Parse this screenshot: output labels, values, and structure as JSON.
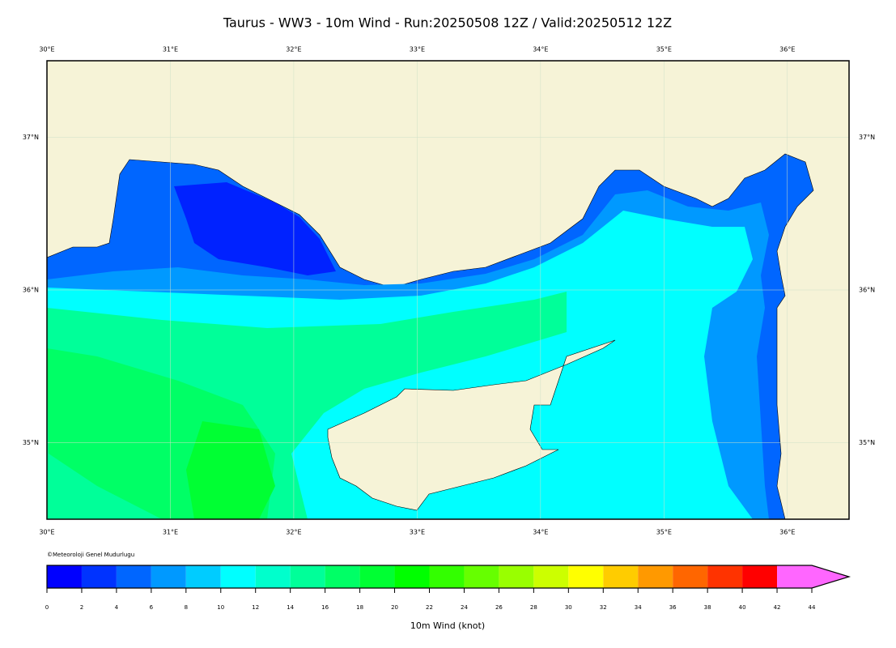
{
  "title": "Taurus - WW3 - 10m Wind - Run:20250508 12Z / Valid:20250512 12Z",
  "map": {
    "xlim": [
      30,
      36.5
    ],
    "ylim": [
      34.5,
      37.5
    ],
    "xticks": [
      {
        "value": 30,
        "label": "30°E"
      },
      {
        "value": 31,
        "label": "31°E"
      },
      {
        "value": 32,
        "label": "32°E"
      },
      {
        "value": 33,
        "label": "33°E"
      },
      {
        "value": 34,
        "label": "34°E"
      },
      {
        "value": 35,
        "label": "35°E"
      },
      {
        "value": 36,
        "label": "36°E"
      }
    ],
    "yticks": [
      {
        "value": 35,
        "label": "35°N"
      },
      {
        "value": 36,
        "label": "36°N"
      },
      {
        "value": 37,
        "label": "37°N"
      }
    ],
    "credit": "©Meteoroloji Genel Mudurlugu"
  },
  "colorbar": {
    "label": "10m Wind (knot)",
    "ticks": [
      0,
      2,
      4,
      6,
      8,
      10,
      12,
      14,
      16,
      18,
      20,
      22,
      24,
      26,
      28,
      30,
      32,
      34,
      36,
      38,
      40,
      42,
      44
    ],
    "colors": [
      "#0000ff",
      "#0033ff",
      "#0066ff",
      "#0099ff",
      "#00ccff",
      "#00ffff",
      "#00ffcc",
      "#00ff99",
      "#00ff66",
      "#00ff33",
      "#00ff00",
      "#33ff00",
      "#66ff00",
      "#99ff00",
      "#ccff00",
      "#ffff00",
      "#ffcc00",
      "#ff9900",
      "#ff6600",
      "#ff3300",
      "#ff0000",
      "#ff66ff"
    ]
  }
}
